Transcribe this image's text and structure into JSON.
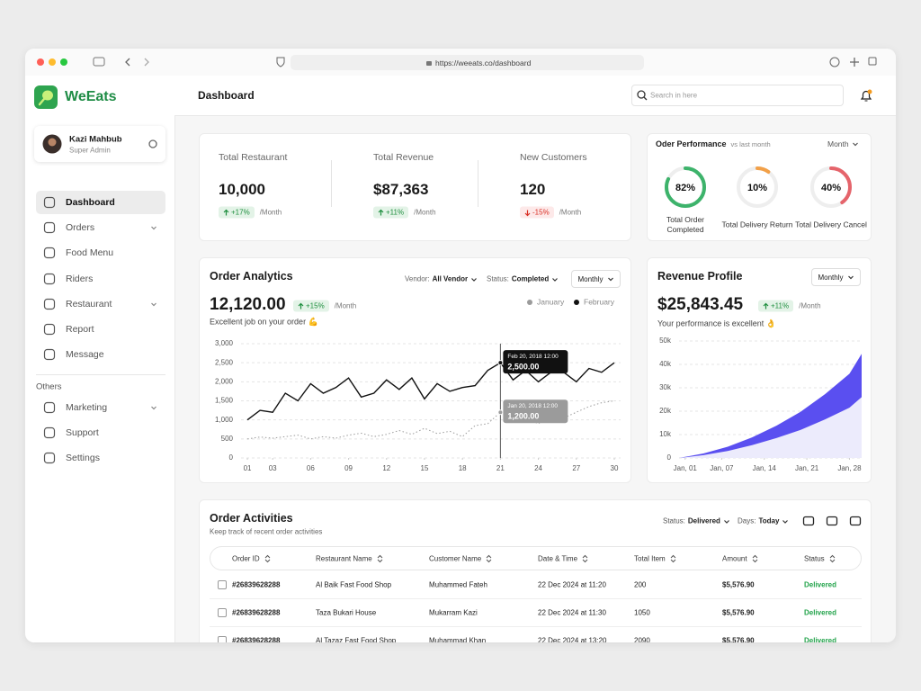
{
  "browser": {
    "url": "https://weeats.co/dashboard"
  },
  "sidebar": {
    "brand": "WeEats",
    "user": {
      "name": "Kazi Mahbub",
      "role": "Super Admin"
    },
    "nav": [
      "Dashboard",
      "Orders",
      "Food Menu",
      "Riders",
      "Restaurant",
      "Report",
      "Message"
    ],
    "section": "Others",
    "others": [
      "Marketing",
      "Support",
      "Settings"
    ]
  },
  "header": {
    "title": "Dashboard",
    "search_placeholder": "Search in here"
  },
  "stats": [
    {
      "label": "Total Restaurant",
      "value": "10,000",
      "change": "+17%",
      "period": "/Month",
      "trend": "up"
    },
    {
      "label": "Total Revenue",
      "value": "$87,363",
      "change": "+11%",
      "period": "/Month",
      "trend": "up"
    },
    {
      "label": "New Customers",
      "value": "120",
      "change": "-15%",
      "period": "/Month",
      "trend": "down"
    }
  ],
  "performance": {
    "title": "Oder Performance",
    "subtitle": "vs last month",
    "filter": "Month",
    "rings": [
      {
        "value": 82,
        "label": "82%",
        "name": "Total Order Completed",
        "color": "#3db36b"
      },
      {
        "value": 10,
        "label": "10%",
        "name": "Total Delivery Return",
        "color": "#f2a048"
      },
      {
        "value": 40,
        "label": "40%",
        "name": "Total Delivery Cancel",
        "color": "#e5646b"
      }
    ]
  },
  "chart_data": [
    {
      "type": "line",
      "title": "Order Analytics",
      "filters": [
        {
          "label": "Vendor:",
          "value": "All Vendor"
        },
        {
          "label": "Status:",
          "value": "Completed"
        }
      ],
      "period_select": "Monthly",
      "headline": "12,120.00",
      "change": "+15%",
      "change_period": "/Month",
      "trend": "up",
      "caption": "Excellent job on your order 💪",
      "x": [
        1,
        2,
        3,
        4,
        5,
        6,
        7,
        8,
        9,
        10,
        11,
        12,
        13,
        14,
        15,
        16,
        17,
        18,
        19,
        20,
        21,
        22,
        23,
        24,
        25,
        26,
        27,
        28,
        29,
        30
      ],
      "xlim": [
        0.5,
        30.5
      ],
      "xticks": [
        {
          "value": 1,
          "label": "01"
        },
        {
          "value": 3,
          "label": "03"
        },
        {
          "value": 6,
          "label": "06"
        },
        {
          "value": 9,
          "label": "09"
        },
        12,
        15,
        18,
        21,
        24,
        27,
        30
      ],
      "ylim": [
        0,
        3000
      ],
      "yticks": [
        0,
        500,
        {
          "value": 1000,
          "label": "1,000"
        },
        {
          "value": 1500,
          "label": "1,500"
        },
        {
          "value": 2000,
          "label": "2,000"
        },
        {
          "value": 2500,
          "label": "2,500"
        },
        {
          "value": 3000,
          "label": "3,000"
        }
      ],
      "grid": true,
      "crosshair_x": 21,
      "series": [
        {
          "name": "January",
          "color": "#9b9b9b",
          "dash": true,
          "values": [
            500,
            550,
            520,
            560,
            600,
            500,
            560,
            520,
            600,
            650,
            560,
            620,
            720,
            620,
            780,
            640,
            700,
            560,
            850,
            900,
            1200,
            1100,
            1050,
            900,
            1150,
            1050,
            1200,
            1350,
            1450,
            1500
          ],
          "tooltip": {
            "title": "Jan 20, 2018 12:00",
            "text": "1,200.00"
          }
        },
        {
          "name": "February",
          "color": "#111111",
          "dash": false,
          "values": [
            1000,
            1250,
            1200,
            1700,
            1500,
            1950,
            1700,
            1850,
            2100,
            1600,
            1700,
            2050,
            1800,
            2100,
            1550,
            1950,
            1750,
            1850,
            1900,
            2300,
            2500,
            2050,
            2300,
            2000,
            2250,
            2250,
            2000,
            2350,
            2250,
            2500
          ],
          "tooltip": {
            "title": "Feb 20, 2018 12:00",
            "text": "2,500.00"
          }
        }
      ]
    },
    {
      "type": "area",
      "stacked": true,
      "title": "Revenue Profile",
      "period_select": "Monthly",
      "headline": "$25,843.45",
      "change": "+11%",
      "change_period": "/Month",
      "trend": "up",
      "caption": "Your performance is excellent 👌",
      "x": [
        0,
        4,
        8,
        12,
        16,
        20,
        24,
        28,
        30
      ],
      "xlim": [
        0,
        30
      ],
      "xticks": [
        {
          "value": 1,
          "label": "Jan, 01"
        },
        {
          "value": 7,
          "label": "Jan, 07"
        },
        {
          "value": 14,
          "label": "Jan, 14"
        },
        {
          "value": 21,
          "label": "Jan, 21"
        },
        {
          "value": 28,
          "label": "Jan, 28"
        }
      ],
      "ylim": [
        0,
        50000
      ],
      "yticks": [
        0,
        {
          "value": 10000,
          "label": "10k"
        },
        {
          "value": 20000,
          "label": "20k"
        },
        {
          "value": 30000,
          "label": "30k"
        },
        {
          "value": 40000,
          "label": "40k"
        },
        {
          "value": 50000,
          "label": "50k"
        }
      ],
      "grid": true,
      "series": [
        {
          "color": "#ecebfc",
          "values": [
            0,
            1200,
            3000,
            5500,
            8500,
            12000,
            16500,
            21500,
            26000
          ]
        },
        {
          "color": "#5a4ff0",
          "values": [
            0,
            700,
            1800,
            3300,
            5300,
            7800,
            10800,
            14500,
            18500
          ]
        }
      ]
    }
  ],
  "activities": {
    "title": "Order Activities",
    "subtitle": "Keep track of recent order activities",
    "filters": [
      {
        "label": "Status:",
        "value": "Delivered"
      },
      {
        "label": "Days:",
        "value": "Today"
      }
    ],
    "columns": [
      "Order ID",
      "Restaurant Name",
      "Customer Name",
      "Date & Time",
      "Total Item",
      "Amount",
      "Status"
    ],
    "rows": [
      [
        "#26839628288",
        "Al Baik Fast Food Shop",
        "Muhammed Fateh",
        "22 Dec 2024 at 11:20",
        "200",
        "$5,576.90",
        "Delivered"
      ],
      [
        "#26839628288",
        "Taza Bukari House",
        "Mukarram Kazi",
        "22 Dec 2024 at 11:30",
        "1050",
        "$5,576.90",
        "Delivered"
      ],
      [
        "#26839628288",
        "Al Tazaz Fast Food Shop",
        "Muhammad Khan",
        "22 Dec 2024 at 13:20",
        "2090",
        "$5,576.90",
        "Delivered"
      ]
    ]
  }
}
